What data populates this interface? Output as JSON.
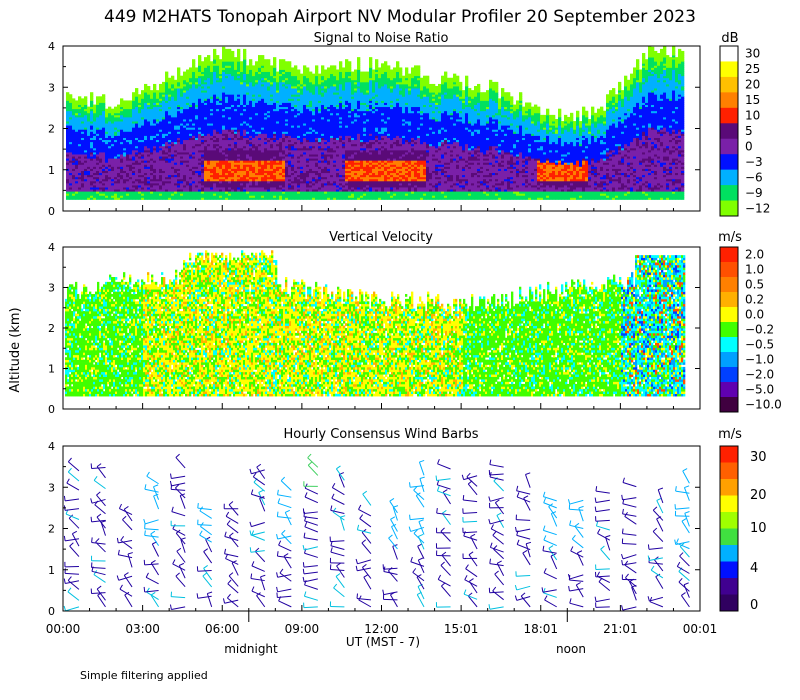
{
  "title": "449 M2HATS Tonopah Airport NV Modular Profiler 20 September 2023",
  "ylabel": "Altitude (km)",
  "xlabel": "UT  (MST - 7)",
  "footer": "Simple filtering applied",
  "local_marks": [
    "midnight",
    "noon"
  ],
  "chart_data": [
    {
      "type": "heatmap",
      "title": "Signal to Noise Ratio",
      "unit": "dB",
      "x_range_hours_ut": [
        0,
        24
      ],
      "ylim_km": [
        0,
        4
      ],
      "yticks": [
        "0",
        "1",
        "2",
        "3",
        "4"
      ],
      "colorbar_labels": [
        "30",
        "25",
        "20",
        "15",
        "10",
        "5",
        "0",
        "−3",
        "−6",
        "−9",
        "−12"
      ],
      "colorbar_colors": [
        "#ffffff",
        "#ffff00",
        "#ffc000",
        "#ff8000",
        "#ff2000",
        "#5a0a78",
        "#7a20a8",
        "#0010ff",
        "#00b0ff",
        "#00e060",
        "#80ff00"
      ],
      "sample_profile": {
        "description": "approx. data top (km) at each hour",
        "hours": [
          0,
          2,
          4,
          6,
          8,
          10,
          12,
          14,
          16,
          18,
          20,
          22,
          24
        ],
        "top_km": [
          2.8,
          2.6,
          3.2,
          3.9,
          3.5,
          3.4,
          3.6,
          3.2,
          3.0,
          2.4,
          2.3,
          3.8,
          3.9
        ]
      }
    },
    {
      "type": "heatmap",
      "title": "Vertical Velocity",
      "unit": "m/s",
      "x_range_hours_ut": [
        0,
        24
      ],
      "ylim_km": [
        0,
        4
      ],
      "yticks": [
        "0",
        "1",
        "2",
        "3",
        "4"
      ],
      "colorbar_labels": [
        "2.0",
        "1.0",
        "0.5",
        "0.2",
        "0.0",
        "−0.2",
        "−0.5",
        "−1.0",
        "−2.0",
        "−5.0",
        "−10.0"
      ],
      "colorbar_colors": [
        "#ff2000",
        "#ff5000",
        "#ff8000",
        "#ffb000",
        "#ffff00",
        "#40ff00",
        "#00ffff",
        "#00a0ff",
        "#0040ff",
        "#6000b0",
        "#400040"
      ]
    },
    {
      "type": "scatter",
      "title": "Hourly Consensus Wind Barbs",
      "unit": "m/s",
      "x_range_hours_ut": [
        0,
        24
      ],
      "ylim_km": [
        0,
        4
      ],
      "yticks": [
        "0",
        "1",
        "2",
        "3",
        "4"
      ],
      "colorbar_labels": [
        "30",
        "20",
        "10",
        "4",
        "0"
      ],
      "colorbar_colors": [
        "#ff2000",
        "#ff6000",
        "#ffa000",
        "#ffff00",
        "#a0ff00",
        "#40e040",
        "#00b0ff",
        "#0010ff",
        "#400090",
        "#300060"
      ],
      "barb_hours": [
        0.3,
        1.3,
        2.3,
        3.3,
        4.3,
        5.3,
        6.3,
        7.3,
        8.3,
        9.3,
        10.3,
        11.3,
        12.3,
        13.3,
        14.3,
        15.3,
        16.3,
        17.3,
        18.3,
        19.3,
        20.3,
        21.3,
        22.3,
        23.3
      ]
    }
  ],
  "xticks": [
    "00:00",
    "03:00",
    "06:00",
    "09:00",
    "12:00",
    "15:01",
    "18:01",
    "21:01",
    "00:01"
  ]
}
